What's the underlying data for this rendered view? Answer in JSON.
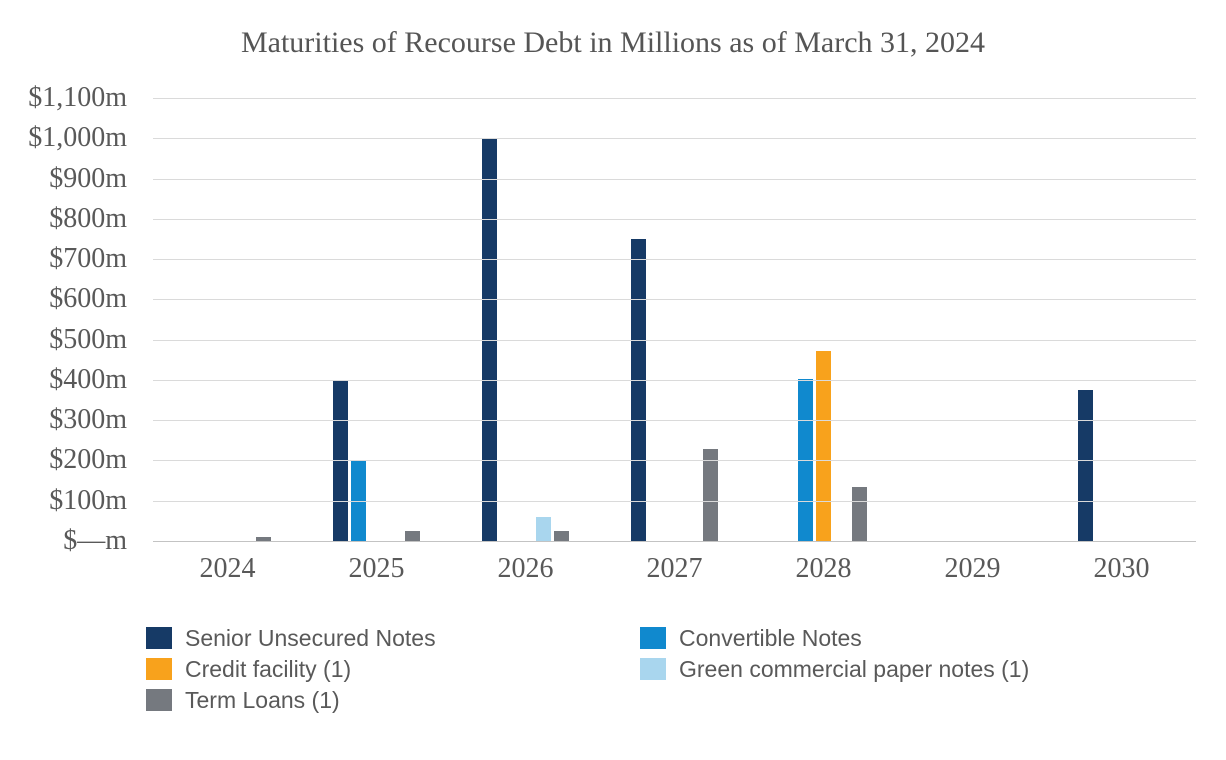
{
  "chart_data": {
    "type": "bar",
    "title": "Maturities of Recourse Debt in Millions as of March 31, 2024",
    "categories": [
      "2024",
      "2025",
      "2026",
      "2027",
      "2028",
      "2029",
      "2030"
    ],
    "series": [
      {
        "name": "Senior Unsecured Notes",
        "color": "#163A66",
        "values": [
          0,
          400,
          1000,
          750,
          0,
          0,
          375
        ]
      },
      {
        "name": "Convertible Notes",
        "color": "#1089CE",
        "values": [
          0,
          200,
          0,
          0,
          403,
          0,
          0
        ]
      },
      {
        "name": "Credit facility (1)",
        "color": "#F8A21C",
        "values": [
          0,
          0,
          0,
          0,
          473,
          0,
          0
        ]
      },
      {
        "name": "Green commercial paper notes (1)",
        "color": "#A9D6EE",
        "values": [
          0,
          0,
          60,
          0,
          0,
          0,
          0
        ]
      },
      {
        "name": "Term Loans (1)",
        "color": "#75797F",
        "values": [
          10,
          25,
          25,
          228,
          133,
          0,
          0
        ]
      }
    ],
    "xlabel": "",
    "ylabel": "",
    "ylim": [
      0,
      1100
    ],
    "ystep": 100,
    "ytick_labels": [
      "$—m",
      "$100m",
      "$200m",
      "$300m",
      "$400m",
      "$500m",
      "$600m",
      "$700m",
      "$800m",
      "$900m",
      "$1,000m",
      "$1,100m"
    ],
    "grid": "horizontal",
    "legend_position": "bottom",
    "legend_columns": [
      [
        0,
        2,
        4
      ],
      [
        1,
        3
      ]
    ]
  },
  "colors": {
    "background": "#FFFFFF",
    "text": "#595959",
    "gridline": "#DADADA",
    "axisline": "#C3C3C3"
  }
}
